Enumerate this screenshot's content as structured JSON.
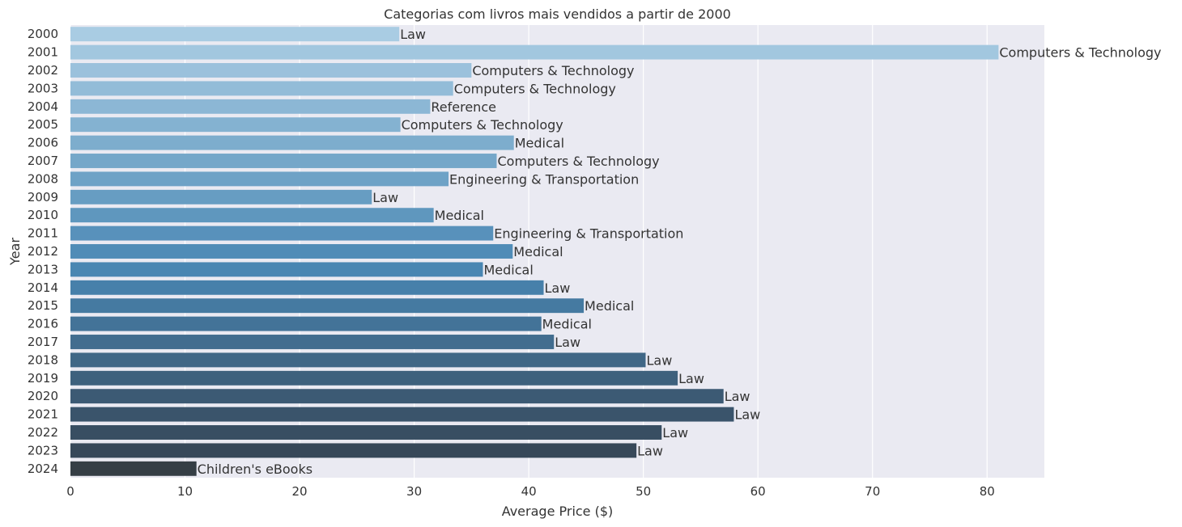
{
  "chart_data": {
    "type": "bar",
    "orientation": "horizontal",
    "title": "Categorias com livros mais vendidos a partir de 2000",
    "xlabel": "Average Price ($)",
    "ylabel": "Year",
    "xlim": [
      0,
      85
    ],
    "xticks": [
      0,
      10,
      20,
      30,
      40,
      50,
      60,
      70,
      80
    ],
    "grid": true,
    "background": "#eaeaf2",
    "categories": [
      "2000",
      "2001",
      "2002",
      "2003",
      "2004",
      "2005",
      "2006",
      "2007",
      "2008",
      "2009",
      "2010",
      "2011",
      "2012",
      "2013",
      "2014",
      "2015",
      "2016",
      "2017",
      "2018",
      "2019",
      "2020",
      "2021",
      "2022",
      "2023",
      "2024"
    ],
    "values": [
      28.7,
      81.0,
      35.0,
      33.4,
      31.4,
      28.8,
      38.7,
      37.2,
      33.0,
      26.3,
      31.7,
      36.9,
      38.6,
      36.0,
      41.3,
      44.8,
      41.1,
      42.2,
      50.2,
      53.0,
      57.0,
      57.9,
      51.6,
      49.4,
      11.0
    ],
    "labels": [
      "Law",
      "Computers & Technology",
      "Computers & Technology",
      "Computers & Technology",
      "Reference",
      "Computers & Technology",
      "Medical",
      "Computers & Technology",
      "Engineering & Transportation",
      "Law",
      "Medical",
      "Engineering & Transportation",
      "Medical",
      "Medical",
      "Law",
      "Medical",
      "Medical",
      "Law",
      "Law",
      "Law",
      "Law",
      "Law",
      "Law",
      "Law",
      "Children's eBooks"
    ],
    "colors": [
      "#a9cce3",
      "#a2c7df",
      "#9bc1dc",
      "#93bcd8",
      "#8cb7d5",
      "#84b2d1",
      "#7dadcd",
      "#75a7c9",
      "#6ea2c6",
      "#679dc2",
      "#5f97be",
      "#5891bb",
      "#508cb7",
      "#4986b2",
      "#4780aa",
      "#457aa1",
      "#437398",
      "#426d8f",
      "#406786",
      "#3e617d",
      "#3c5a74",
      "#3a546b",
      "#384e62",
      "#374859",
      "#353e45"
    ]
  }
}
